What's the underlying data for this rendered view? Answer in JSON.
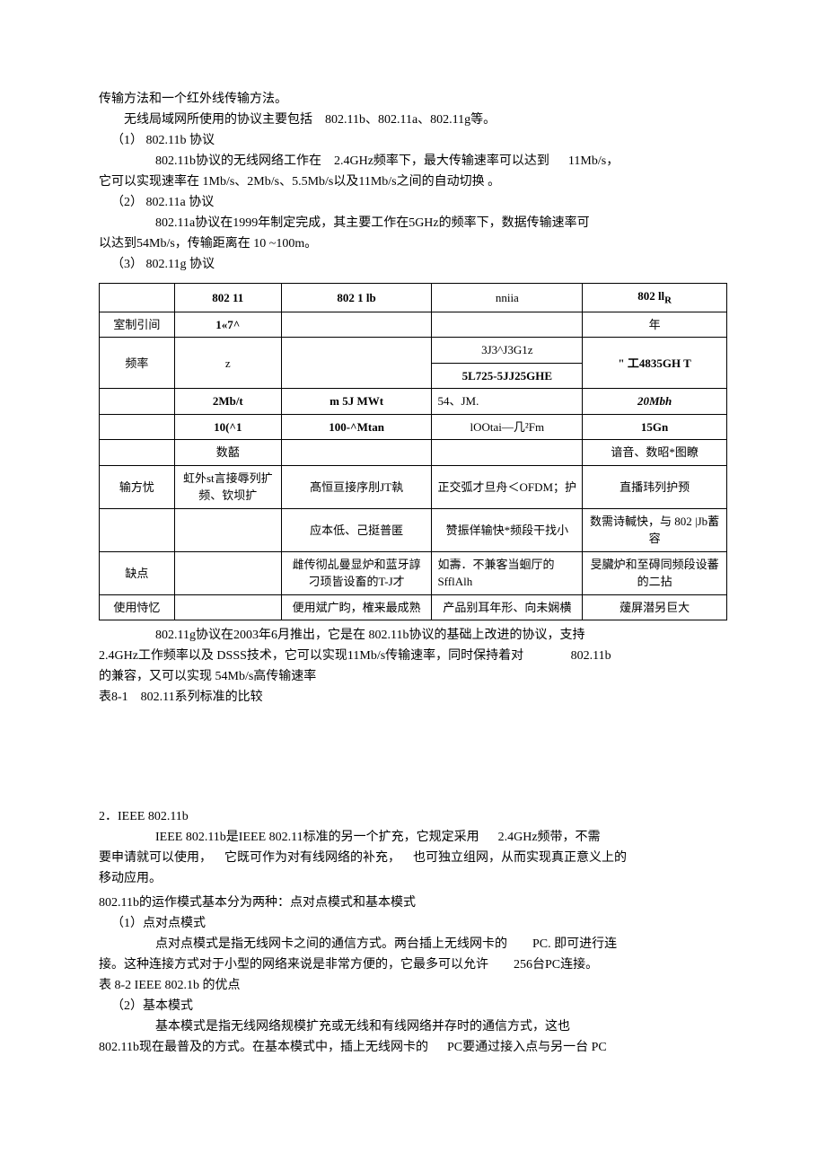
{
  "p1": "传输方法和一个红外线传输方法。",
  "p2_a": "无线局域网所使用的协议主要包括",
  "p2_b": "802.11b、802.11a、802.11g等。",
  "item1": "（1） 802.11b 协议",
  "p3_a": "802.11b协议的无线网络工作在",
  "p3_b": "2.4GHz频率下，最大传输速率可以达到",
  "p3_c": "11Mb/s，",
  "p4": "它可以实现速率在 1Mb/s、2Mb/s、5.5Mb/s以及11Mb/s之间的自动切换 。",
  "item2": "（2） 802.11a 协议",
  "p5": "802.11a协议在1999年制定完成，其主要工作在5GHz的频率下，数据传输速率可",
  "p6": "以达到54Mb/s，传输距离在 10 ~100m。",
  "item3": "（3） 802.11g 协议",
  "table": {
    "header": [
      "",
      "802 11",
      "802 1 lb",
      "nniia",
      "802 ll"
    ],
    "header_sub": "R",
    "r1": [
      "室制引间",
      "1«7^",
      "",
      "",
      "年"
    ],
    "r2": [
      "频率",
      "z",
      "",
      "3J3^J3G1z",
      "\" 工4835GH T"
    ],
    "r2b": "5L725-5JJ25GHE",
    "r3": [
      "",
      "2Mb/t",
      "m 5J MWt",
      "54、JM.",
      "20Mbh"
    ],
    "r4": [
      "",
      "10(^1",
      "100-^Mtan",
      "lOOtai—几²Fm",
      "15Gn"
    ],
    "r5": [
      "",
      "数嚭",
      "",
      "",
      "谙音、数昭*图瞭"
    ],
    "r6": [
      "输方忧",
      "虹外st言接辱列扩频、钦坝扩",
      "髙恒亘接序刖JT執",
      "正交弧才旦舟＜OFDM；护",
      "直播玮列护预"
    ],
    "r7": [
      "",
      "",
      "应本低、己挺普匿",
      "赞振佯输快*频段干找小",
      "数需诗輱快，与 802 |Jb蓄容"
    ],
    "r8a": [
      "缺点",
      "",
      "雌传彻乩曼显炉和蓝牙諄刁顼皆设畜的T-J才",
      "如壽．不兼客当蛔厅的 SfflAlh",
      "旻臟炉和至碍同频段设蕃的二拈"
    ],
    "r8b": [
      "使用恃忆",
      "",
      "便用斌广盷，榷来最成熟",
      "产品别耳年形、向未娴横",
      "蕿屏潜另巨大"
    ]
  },
  "p7_a": "802.11g协议在2003年6月推出，它是在 802.11b协议的基础上改进的协议，支持",
  "p8_a": "2.4GHz工作频率以及 DSSS技术，它可以实现11Mb/s传输速率，同时保持着对",
  "p8_b": "802.11b",
  "p9": "的兼容，又可以实现 54Mb/s高传输速率",
  "p10": "表8-1　802.11系列标准的比较",
  "s2_title": "2．IEEE 802.11b",
  "p11_a": "IEEE 802.11b是IEEE 802.11标准的另一个扩充，它规定采用",
  "p11_b": "2.4GHz频带，不需",
  "p12_a": "要申请就可以使用，",
  "p12_b": "它既可作为对有线网络的补充，",
  "p12_c": "也可独立组网，从而实现真正意义上的",
  "p13": "移动应用。",
  "p14": "802.11b的运作模式基本分为两种：点对点模式和基本模式",
  "item_ptp": "（1）点对点模式",
  "p15_a": "点对点模式是指无线网卡之间的通信方式。两台插上无线网卡的",
  "p15_b": "PC. 即可进行连",
  "p16_a": "接。这种连接方式对于小型的网络来说是非常方便的，它最多可以允许",
  "p16_b": "256台PC连接。",
  "p17": "表 8-2 IEEE 802.1b 的优点",
  "item_basic": "（2）基本模式",
  "p18": "基本模式是指无线网络规模扩充或无线和有线网络并存时的通信方式，这也",
  "p19_a": "802.11b现在最普及的方式。在基本模式中，插上无线网卡的",
  "p19_b": "PC要通过接入点与另一台 PC"
}
